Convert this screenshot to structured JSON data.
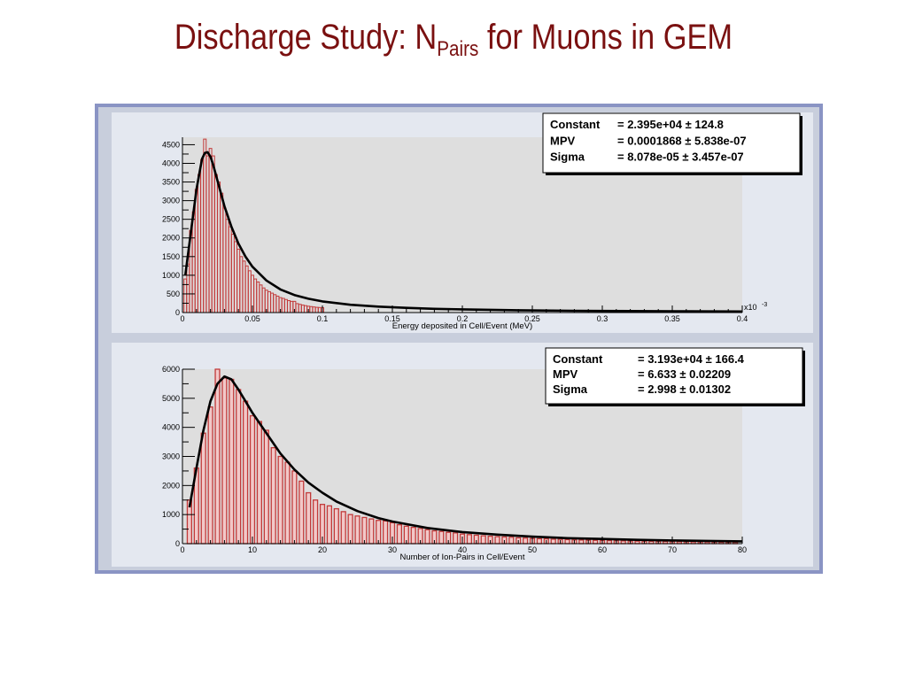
{
  "slide": {
    "title_prefix": "Discharge Study: N",
    "title_subscript": "Pairs",
    "title_suffix": " for Muons in GEM"
  },
  "colors": {
    "title": "#7a1010",
    "canvas_border": "#8a94c4",
    "canvas_bg": "#e4e8f0",
    "plot_bg": "#dedede",
    "histogram": "#c23a3a",
    "fit": "#000000"
  },
  "chart_data": [
    {
      "type": "bar",
      "xlabel": "Energy deposited in Cell/Event (MeV)",
      "ylabel": "",
      "x_multiplier": "x10",
      "x_multiplier_exp": "-3",
      "xlim": [
        0,
        0.4
      ],
      "ylim": [
        0,
        4700
      ],
      "xticks": [
        {
          "v": 0,
          "label": "0"
        },
        {
          "v": 0.05,
          "label": "0.05"
        },
        {
          "v": 0.1,
          "label": "0.1"
        },
        {
          "v": 0.15,
          "label": "0.15"
        },
        {
          "v": 0.2,
          "label": "0.2"
        },
        {
          "v": 0.25,
          "label": "0.25"
        },
        {
          "v": 0.3,
          "label": "0.3"
        },
        {
          "v": 0.35,
          "label": "0.35"
        },
        {
          "v": 0.4,
          "label": "0.4"
        }
      ],
      "yticks": [
        {
          "v": 0,
          "label": "0"
        },
        {
          "v": 500,
          "label": "500"
        },
        {
          "v": 1000,
          "label": "1000"
        },
        {
          "v": 1500,
          "label": "1500"
        },
        {
          "v": 2000,
          "label": "2000"
        },
        {
          "v": 2500,
          "label": "2500"
        },
        {
          "v": 3000,
          "label": "3000"
        },
        {
          "v": 3500,
          "label": "3500"
        },
        {
          "v": 4000,
          "label": "4000"
        },
        {
          "v": 4500,
          "label": "4500"
        }
      ],
      "bin_width": 0.002,
      "bins_x": [
        0.002,
        0.004,
        0.006,
        0.008,
        0.01,
        0.012,
        0.014,
        0.016,
        0.018,
        0.02,
        0.022,
        0.024,
        0.026,
        0.028,
        0.03,
        0.032,
        0.034,
        0.036,
        0.038,
        0.04,
        0.042,
        0.044,
        0.046,
        0.048,
        0.05,
        0.052,
        0.054,
        0.056,
        0.058,
        0.06,
        0.062,
        0.064,
        0.066,
        0.068,
        0.07,
        0.072,
        0.074,
        0.076,
        0.078,
        0.08,
        0.082,
        0.084,
        0.086,
        0.088,
        0.09,
        0.092,
        0.094,
        0.096,
        0.098,
        0.1
      ],
      "bins_y": [
        900,
        1300,
        2200,
        2700,
        3300,
        3700,
        4100,
        4650,
        4200,
        4400,
        4200,
        3700,
        3500,
        3200,
        2800,
        2500,
        2300,
        2100,
        1900,
        1700,
        1500,
        1380,
        1250,
        1120,
        1000,
        900,
        820,
        740,
        660,
        600,
        560,
        520,
        480,
        440,
        400,
        380,
        350,
        320,
        300,
        300,
        240,
        220,
        200,
        185,
        170,
        160,
        150,
        140,
        135,
        130
      ],
      "fit": {
        "name": "Landau",
        "x": [
          0.002,
          0.006,
          0.01,
          0.014,
          0.016,
          0.018,
          0.02,
          0.022,
          0.026,
          0.03,
          0.035,
          0.04,
          0.045,
          0.05,
          0.06,
          0.07,
          0.08,
          0.09,
          0.1,
          0.12,
          0.14,
          0.16,
          0.18,
          0.2,
          0.24,
          0.28,
          0.32,
          0.36,
          0.4
        ],
        "y": [
          1000,
          2150,
          3300,
          4120,
          4280,
          4300,
          4180,
          3950,
          3400,
          2850,
          2300,
          1850,
          1500,
          1230,
          860,
          620,
          470,
          370,
          300,
          210,
          160,
          125,
          100,
          85,
          62,
          48,
          40,
          33,
          28
        ]
      },
      "stats_box": [
        {
          "label": "Constant",
          "value": "= 2.395e+04 ±  124.8"
        },
        {
          "label": "MPV",
          "value": "= 0.0001868 ± 5.838e-07"
        },
        {
          "label": "Sigma",
          "value": "= 8.078e-05 ± 3.457e-07"
        }
      ]
    },
    {
      "type": "bar",
      "xlabel": "Number of Ion-Pairs in Cell/Event",
      "ylabel": "",
      "xlim": [
        0,
        80
      ],
      "ylim": [
        0,
        6000
      ],
      "xticks": [
        {
          "v": 0,
          "label": "0"
        },
        {
          "v": 10,
          "label": "10"
        },
        {
          "v": 20,
          "label": "20"
        },
        {
          "v": 30,
          "label": "30"
        },
        {
          "v": 40,
          "label": "40"
        },
        {
          "v": 50,
          "label": "50"
        },
        {
          "v": 60,
          "label": "60"
        },
        {
          "v": 70,
          "label": "70"
        },
        {
          "v": 80,
          "label": "80"
        }
      ],
      "yticks": [
        {
          "v": 0,
          "label": "0"
        },
        {
          "v": 1000,
          "label": "1000"
        },
        {
          "v": 2000,
          "label": "2000"
        },
        {
          "v": 3000,
          "label": "3000"
        },
        {
          "v": 4000,
          "label": "4000"
        },
        {
          "v": 5000,
          "label": "5000"
        },
        {
          "v": 6000,
          "label": "6000"
        }
      ],
      "bin_width": 1,
      "bins_x": [
        1,
        2,
        3,
        4,
        5,
        6,
        7,
        8,
        9,
        10,
        11,
        12,
        13,
        14,
        15,
        16,
        17,
        18,
        19,
        20,
        21,
        22,
        23,
        24,
        25,
        26,
        27,
        28,
        29,
        30,
        31,
        32,
        33,
        34,
        35,
        36,
        37,
        38,
        39,
        40,
        41,
        42,
        43,
        44,
        45,
        46,
        47,
        48,
        49,
        50,
        51,
        52,
        53,
        54,
        55,
        56,
        57,
        58,
        59,
        60,
        61,
        62,
        63,
        64,
        65,
        66,
        67,
        68,
        69,
        70,
        71,
        72,
        73,
        74,
        75,
        76,
        77,
        78,
        79
      ],
      "bins_y": [
        1500,
        2600,
        3800,
        4700,
        6000,
        5700,
        5650,
        5300,
        4900,
        4400,
        4200,
        3900,
        3300,
        3000,
        2800,
        2500,
        2150,
        1750,
        1500,
        1350,
        1300,
        1200,
        1100,
        1000,
        950,
        900,
        850,
        800,
        780,
        720,
        650,
        600,
        560,
        520,
        480,
        440,
        420,
        390,
        370,
        330,
        310,
        290,
        270,
        255,
        240,
        230,
        220,
        200,
        190,
        180,
        170,
        165,
        155,
        150,
        140,
        130,
        125,
        120,
        115,
        110,
        105,
        100,
        95,
        90,
        86,
        82,
        78,
        75,
        72,
        68,
        65,
        62,
        60,
        58,
        55,
        52,
        50,
        48,
        46
      ],
      "fit": {
        "name": "Landau",
        "x": [
          1,
          2,
          3,
          4,
          5,
          6,
          7,
          8,
          9,
          10,
          12,
          14,
          16,
          18,
          20,
          22,
          25,
          28,
          30,
          35,
          40,
          45,
          50,
          55,
          60,
          65,
          70,
          75,
          80
        ],
        "y": [
          1250,
          2600,
          3900,
          4900,
          5500,
          5750,
          5650,
          5300,
          4900,
          4500,
          3800,
          3100,
          2550,
          2100,
          1750,
          1450,
          1120,
          880,
          760,
          540,
          400,
          310,
          240,
          190,
          160,
          130,
          110,
          95,
          80
        ]
      },
      "stats_box": [
        {
          "label": "Constant",
          "value": "= 3.193e+04 ±  166.4"
        },
        {
          "label": "MPV",
          "value": "= 6.633 ± 0.02209"
        },
        {
          "label": "Sigma",
          "value": "= 2.998 ± 0.01302"
        }
      ]
    }
  ]
}
